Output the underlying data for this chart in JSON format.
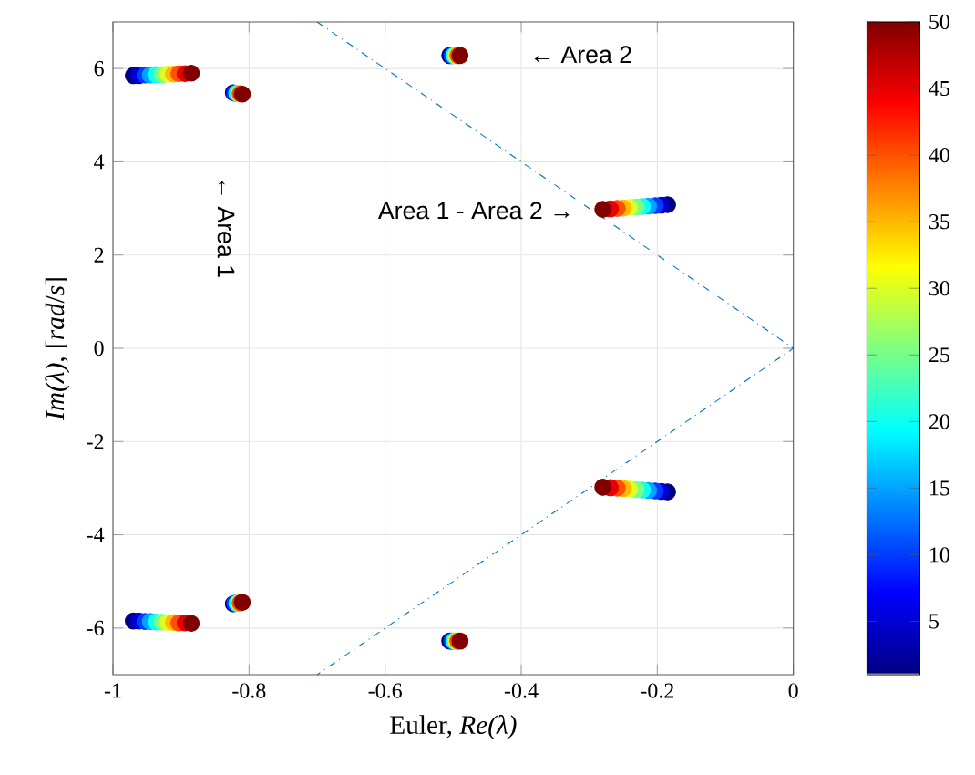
{
  "chart_data": {
    "type": "scatter",
    "xlabel": "Euler, *Re(λ)*",
    "ylabel": "*Im(λ)*, [*rad*/*s*]",
    "xlim": [
      -1,
      0
    ],
    "ylim": [
      -7,
      7
    ],
    "xticks": [
      -1,
      -0.8,
      -0.6,
      -0.4,
      -0.2,
      0
    ],
    "yticks": [
      -6,
      -4,
      -2,
      0,
      2,
      4,
      6
    ],
    "clim": [
      1,
      50
    ],
    "cticks": [
      5,
      10,
      15,
      20,
      25,
      30,
      35,
      40,
      45,
      50
    ],
    "grid": true,
    "marker": "circle",
    "annotations": [
      "← Area 2",
      "Area 1 - Area 2 →",
      "← Area 1"
    ],
    "series": [
      {
        "colors": [
          "#000080",
          "#0000d3",
          "#003cff",
          "#00a4ff",
          "#0dfff2",
          "#75ff8a",
          "#ddff22",
          "#ffb900",
          "#ff5100",
          "#e80000",
          "#800000",
          "#000080",
          "#003cff",
          "#0dfff2",
          "#ddff22",
          "#ff5100",
          "#800000",
          "#000080",
          "#003cff",
          "#0dfff2",
          "#ddff22",
          "#ff5100",
          "#800000",
          "#000080",
          "#0000d3",
          "#003cff",
          "#00a4ff",
          "#0dfff2",
          "#75ff8a",
          "#ddff22",
          "#ffb900",
          "#ff5100",
          "#e80000",
          "#800000",
          "#000080",
          "#0000d3",
          "#003cff",
          "#00a4ff",
          "#0dfff2",
          "#75ff8a",
          "#ddff22",
          "#ffb900",
          "#ff5100",
          "#e80000",
          "#800000",
          "#000080",
          "#003cff",
          "#0dfff2",
          "#ddff22",
          "#ff5100",
          "#800000",
          "#000080",
          "#003cff",
          "#0dfff2",
          "#ddff22",
          "#ff5100",
          "#800000",
          "#000080",
          "#0000d3",
          "#003cff",
          "#00a4ff",
          "#0dfff2",
          "#75ff8a",
          "#ddff22",
          "#ffb900",
          "#ff5100",
          "#e80000",
          "#800000"
        ],
        "x": [
          -0.97,
          -0.962,
          -0.953,
          -0.945,
          -0.937,
          -0.928,
          -0.92,
          -0.911,
          -0.903,
          -0.894,
          -0.885,
          -0.823,
          -0.821,
          -0.818,
          -0.815,
          -0.813,
          -0.81,
          -0.505,
          -0.502,
          -0.499,
          -0.496,
          -0.493,
          -0.49,
          -0.185,
          -0.194,
          -0.203,
          -0.213,
          -0.222,
          -0.231,
          -0.241,
          -0.25,
          -0.259,
          -0.269,
          -0.28,
          -0.97,
          -0.962,
          -0.953,
          -0.945,
          -0.937,
          -0.928,
          -0.92,
          -0.911,
          -0.903,
          -0.894,
          -0.885,
          -0.823,
          -0.821,
          -0.818,
          -0.815,
          -0.813,
          -0.81,
          -0.505,
          -0.502,
          -0.499,
          -0.496,
          -0.493,
          -0.49,
          -0.185,
          -0.194,
          -0.203,
          -0.213,
          -0.222,
          -0.231,
          -0.241,
          -0.25,
          -0.259,
          -0.269,
          -0.28
        ],
        "values": [
          5.85,
          5.85,
          5.86,
          5.86,
          5.87,
          5.87,
          5.88,
          5.88,
          5.89,
          5.89,
          5.9,
          5.48,
          5.47,
          5.47,
          5.46,
          5.46,
          5.45,
          6.28,
          6.28,
          6.28,
          6.28,
          6.28,
          6.28,
          3.08,
          3.07,
          3.06,
          3.05,
          3.04,
          3.03,
          3.02,
          3.01,
          3.0,
          2.99,
          2.98,
          -5.85,
          -5.85,
          -5.86,
          -5.86,
          -5.87,
          -5.87,
          -5.88,
          -5.88,
          -5.89,
          -5.89,
          -5.9,
          -5.48,
          -5.47,
          -5.47,
          -5.46,
          -5.46,
          -5.45,
          -6.28,
          -6.28,
          -6.28,
          -6.28,
          -6.28,
          -6.28,
          -3.08,
          -3.07,
          -3.06,
          -3.05,
          -3.04,
          -3.03,
          -3.02,
          -3.01,
          -3.0,
          -2.99,
          -2.98
        ],
        "cvalues": [
          1,
          5,
          10,
          15,
          20,
          25,
          30,
          35,
          40,
          45,
          50,
          1,
          10,
          20,
          30,
          40,
          50,
          1,
          10,
          20,
          30,
          40,
          50,
          1,
          5,
          10,
          15,
          20,
          25,
          30,
          35,
          40,
          45,
          50,
          1,
          5,
          10,
          15,
          20,
          25,
          30,
          35,
          40,
          45,
          50,
          1,
          10,
          20,
          30,
          40,
          50,
          1,
          10,
          20,
          30,
          40,
          50,
          1,
          5,
          10,
          15,
          20,
          25,
          30,
          35,
          40,
          45,
          50
        ]
      },
      {
        "type": "line",
        "color": "#0072bd",
        "line_style": "dashdot",
        "marker": "none",
        "x": [
          -0.7,
          0,
          -0.7
        ],
        "values": [
          7,
          0,
          -7
        ]
      }
    ]
  }
}
